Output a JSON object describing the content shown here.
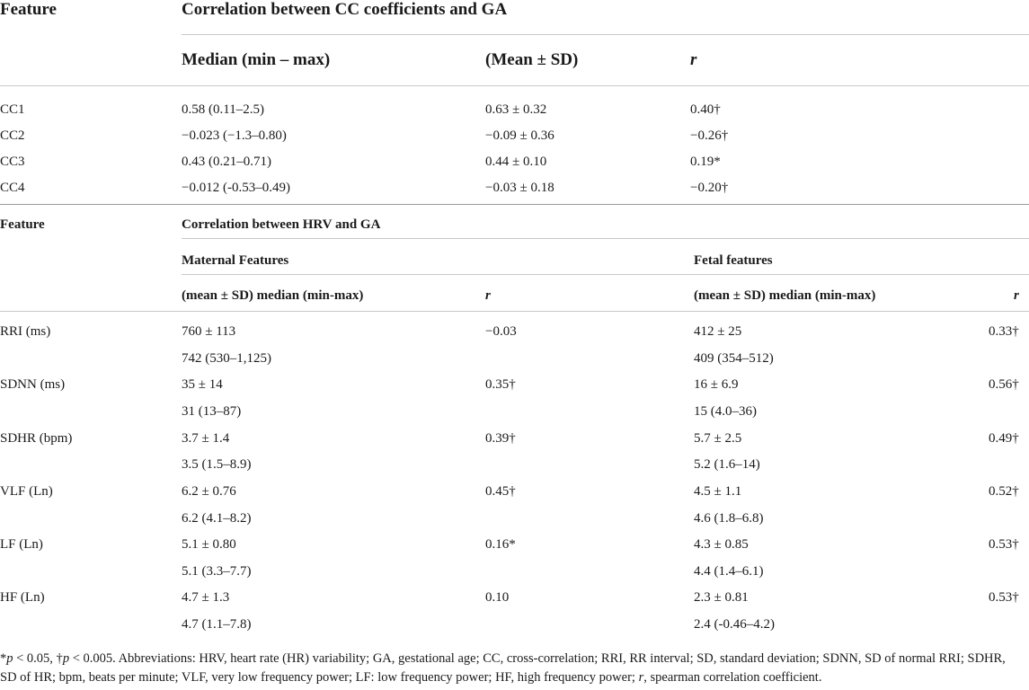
{
  "section1": {
    "feature_label": "Feature",
    "title": "Correlation between CC coefficients and GA",
    "col_median": "Median (min – max)",
    "col_mean": "(Mean ± SD)",
    "col_r": "r",
    "rows": [
      {
        "feature": "CC1",
        "median": "0.58 (0.11–2.5)",
        "mean": "0.63 ± 0.32",
        "r": "0.40†"
      },
      {
        "feature": "CC2",
        "median": "−0.023 (−1.3–0.80)",
        "mean": "−0.09 ± 0.36",
        "r": "−0.26†"
      },
      {
        "feature": "CC3",
        "median": "0.43 (0.21–0.71)",
        "mean": "0.44 ± 0.10",
        "r": "0.19*"
      },
      {
        "feature": "CC4",
        "median": "−0.012 (-0.53–0.49)",
        "mean": "−0.03 ± 0.18",
        "r": "−0.20†"
      }
    ]
  },
  "section2": {
    "feature_label": "Feature",
    "title": "Correlation between HRV and GA",
    "maternal_label": "Maternal Features",
    "fetal_label": "Fetal features",
    "col_stats": "(mean ± SD) median (min-max)",
    "col_r": "r",
    "rows": [
      {
        "feature": "RRI (ms)",
        "m_mean": "760 ± 113",
        "m_median": "742 (530–1,125)",
        "m_r": "−0.03",
        "f_mean": "412 ± 25",
        "f_median": "409 (354–512)",
        "f_r": "0.33†"
      },
      {
        "feature": "SDNN (ms)",
        "m_mean": "35 ± 14",
        "m_median": "31 (13–87)",
        "m_r": "0.35†",
        "f_mean": "16 ± 6.9",
        "f_median": "15 (4.0–36)",
        "f_r": "0.56†"
      },
      {
        "feature": "SDHR (bpm)",
        "m_mean": "3.7 ± 1.4",
        "m_median": "3.5 (1.5–8.9)",
        "m_r": "0.39†",
        "f_mean": "5.7 ± 2.5",
        "f_median": "5.2 (1.6–14)",
        "f_r": "0.49†"
      },
      {
        "feature": "VLF (Ln)",
        "m_mean": "6.2 ± 0.76",
        "m_median": "6.2 (4.1–8.2)",
        "m_r": "0.45†",
        "f_mean": "4.5 ± 1.1",
        "f_median": "4.6 (1.8–6.8)",
        "f_r": "0.52†"
      },
      {
        "feature": "LF (Ln)",
        "m_mean": "5.1 ± 0.80",
        "m_median": "5.1 (3.3–7.7)",
        "m_r": "0.16*",
        "f_mean": "4.3 ± 0.85",
        "f_median": "4.4 (1.4–6.1)",
        "f_r": "0.53†"
      },
      {
        "feature": "HF (Ln)",
        "m_mean": "4.7 ± 1.3",
        "m_median": "4.7 (1.1–7.8)",
        "m_r": "0.10",
        "f_mean": "2.3 ± 0.81",
        "f_median": "2.4 (-0.46–4.2)",
        "f_r": "0.53†"
      }
    ]
  },
  "footnote": {
    "p1_sym": "*",
    "p1_var": "p",
    "p1_rest": " < 0.05, †",
    "p2_var": "p",
    "p2_rest": " < 0.005. Abbreviations: HRV, heart rate (HR) variability; GA, gestational age; CC, cross-correlation; RRI, RR interval; SD, standard deviation; SDNN, SD of normal RRI; SDHR, SD of HR; bpm, beats per minute; VLF, very low frequency power; LF: low frequency power; HF, high frequency power; ",
    "r_var": "r",
    "r_rest": ", spearman correlation coefficient."
  }
}
